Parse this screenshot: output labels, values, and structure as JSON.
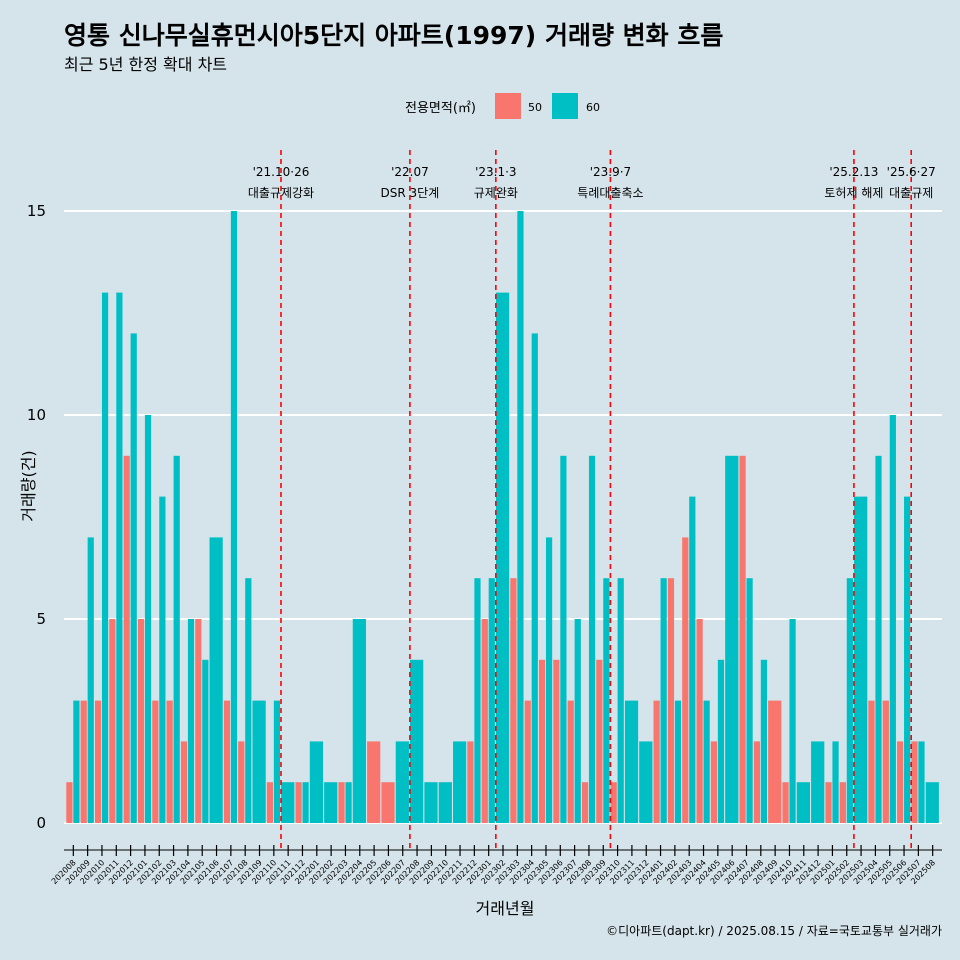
{
  "chart_data": {
    "type": "bar",
    "title": "영통 신나무실휴먼시아5단지 아파트(1997) 거래량 변화 흐름",
    "subtitle": "최근 5년 한정 확대 차트",
    "xlabel": "거래년월",
    "ylabel": "거래량(건)",
    "ylim": [
      0,
      16
    ],
    "yticks": [
      "0",
      "5",
      "10",
      "15"
    ],
    "legend": {
      "title": "전용면적(㎡)",
      "position": "top",
      "entries": [
        {
          "name": "50",
          "color": "#f8766d"
        },
        {
          "name": "60",
          "color": "#00bfc4"
        }
      ]
    },
    "categories": [
      "202008",
      "202009",
      "202010",
      "202011",
      "202012",
      "202101",
      "202102",
      "202103",
      "202104",
      "202105",
      "202106",
      "202107",
      "202108",
      "202109",
      "202110",
      "202111",
      "202112",
      "202201",
      "202202",
      "202203",
      "202204",
      "202205",
      "202206",
      "202207",
      "202208",
      "202209",
      "202210",
      "202211",
      "202212",
      "202301",
      "202302",
      "202303",
      "202304",
      "202305",
      "202306",
      "202307",
      "202308",
      "202309",
      "202310",
      "202311",
      "202312",
      "202401",
      "202402",
      "202403",
      "202404",
      "202405",
      "202406",
      "202407",
      "202408",
      "202409",
      "202410",
      "202411",
      "202412",
      "202501",
      "202502",
      "202503",
      "202504",
      "202505",
      "202506",
      "202507",
      "202508"
    ],
    "series": [
      {
        "name": "50",
        "color": "#f8766d",
        "values": [
          1,
          3,
          3,
          5,
          9,
          5,
          3,
          3,
          2,
          5,
          0,
          3,
          2,
          0,
          1,
          0,
          1,
          0,
          0,
          1,
          0,
          2,
          1,
          0,
          0,
          0,
          0,
          0,
          2,
          5,
          0,
          6,
          3,
          4,
          4,
          3,
          1,
          4,
          1,
          0,
          0,
          3,
          6,
          7,
          5,
          2,
          0,
          9,
          2,
          3,
          1,
          0,
          0,
          1,
          1,
          0,
          3,
          3,
          2,
          2,
          0
        ]
      },
      {
        "name": "60",
        "color": "#00bfc4",
        "values": [
          3,
          7,
          13,
          13,
          12,
          10,
          8,
          9,
          5,
          4,
          7,
          15,
          6,
          3,
          3,
          1,
          1,
          2,
          1,
          1,
          5,
          0,
          0,
          2,
          4,
          1,
          1,
          2,
          6,
          6,
          13,
          15,
          12,
          7,
          9,
          5,
          9,
          6,
          6,
          3,
          2,
          6,
          3,
          8,
          3,
          4,
          9,
          6,
          4,
          0,
          5,
          1,
          2,
          2,
          6,
          8,
          9,
          10,
          8,
          2,
          1
        ]
      }
    ],
    "events": [
      {
        "after": "202110",
        "date": "'21.10·26",
        "label": "대출규제강화"
      },
      {
        "after": "202207",
        "date": "'22.07",
        "label": "DSR 3단계"
      },
      {
        "after": "202301",
        "date": "'23.1·3",
        "label": "규제완화"
      },
      {
        "after": "202309",
        "date": "'23.9·7",
        "label": "특례대출축소"
      },
      {
        "after": "202502",
        "date": "'25.2.13",
        "label": "토허제 해제"
      },
      {
        "after": "202506",
        "date": "'25.6·27",
        "label": "대출규제"
      }
    ],
    "grid": true,
    "caption": "©디아파트(dapt.kr) / 2025.08.15 / 자료=국토교통부 실거래가"
  }
}
